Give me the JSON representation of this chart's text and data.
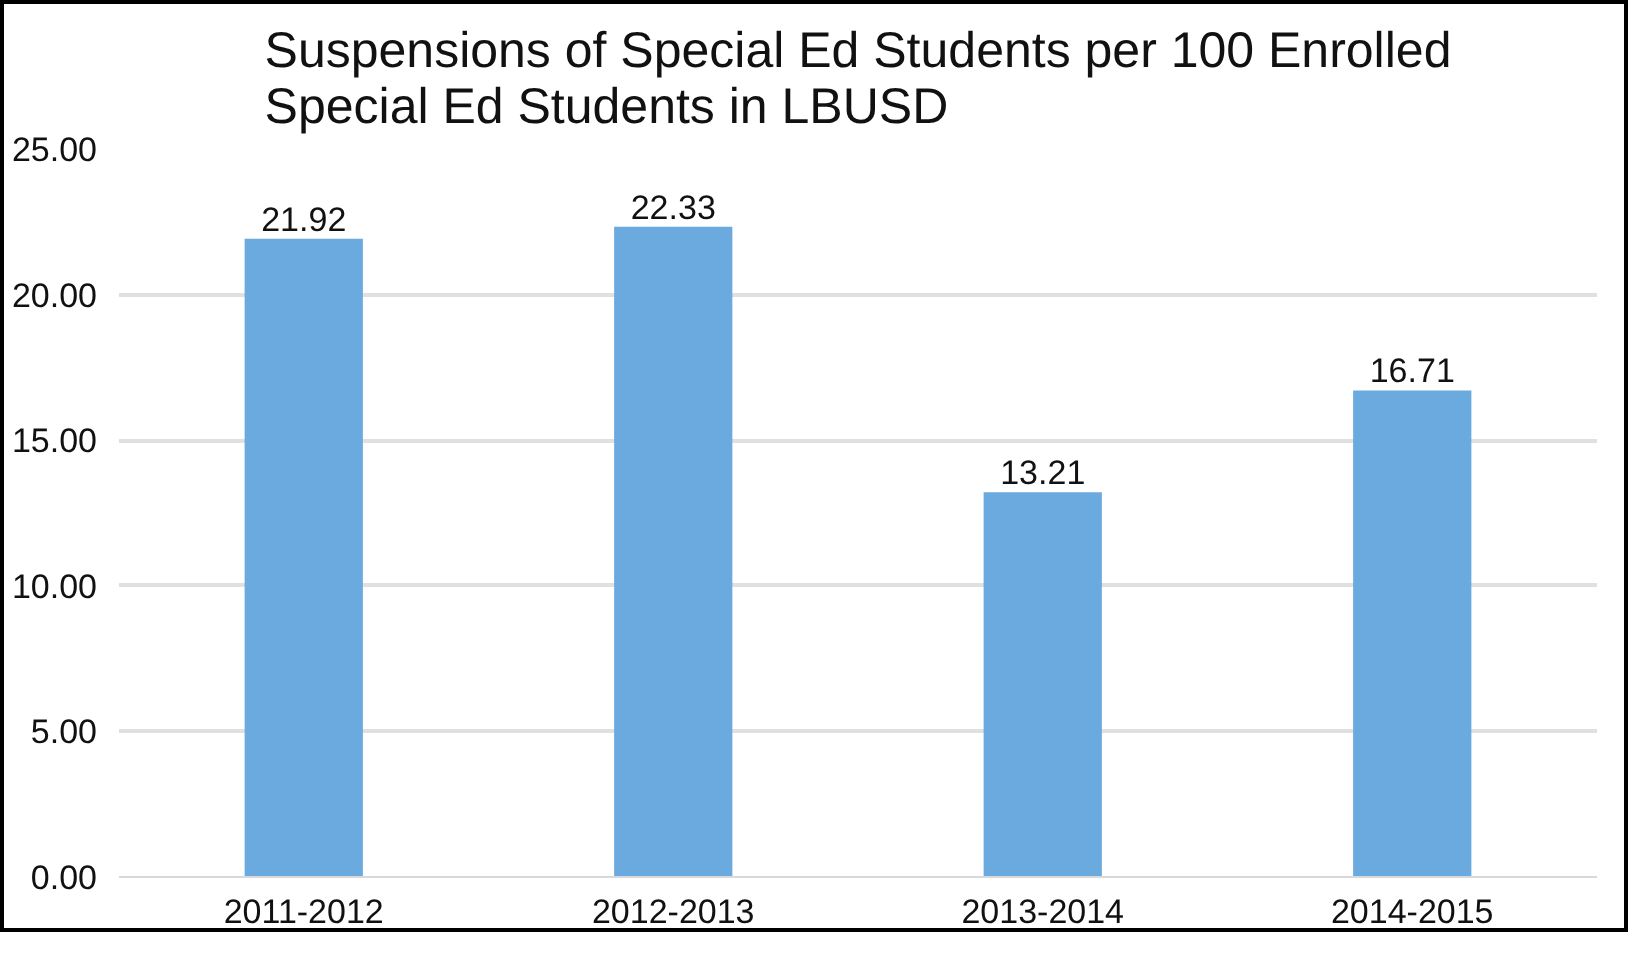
{
  "chart_data": {
    "type": "bar",
    "title": "Suspensions of Special Ed Students per 100 Enrolled Special Ed Students in LBUSD",
    "categories": [
      "2011-2012",
      "2012-2013",
      "2013-2014",
      "2014-2015"
    ],
    "values": [
      21.92,
      22.33,
      13.21,
      16.71
    ],
    "color": "#6aaade",
    "ylim": [
      0,
      25
    ],
    "yticks": [
      {
        "value": 0,
        "label": "0.00"
      },
      {
        "value": 5,
        "label": "5.00"
      },
      {
        "value": 10,
        "label": "10.00"
      },
      {
        "value": 15,
        "label": "15.00"
      },
      {
        "value": 20,
        "label": "20.00"
      },
      {
        "value": 25,
        "label": "25.00"
      }
    ],
    "grid": "y",
    "data_labels": true
  }
}
